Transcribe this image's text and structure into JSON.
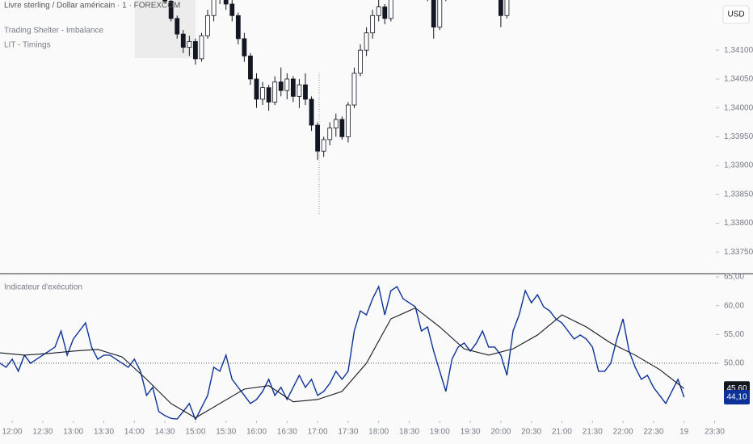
{
  "chart_data": [
    {
      "type": "candlestick",
      "title": "Livre sterling / Dollar américain · 1 · FOREXCOM",
      "indicators": [
        "Trading Shelter - Imbalance",
        "LIT - Timings"
      ],
      "currency": "USD",
      "up_color": "#ffffff",
      "down_color": "#131722",
      "border_color": "#131722",
      "xlim": [
        11.8,
        23.52
      ],
      "ylim": [
        1.33714,
        1.34187
      ],
      "yticks": [
        {
          "value": 1.341,
          "label": "1,34100"
        },
        {
          "value": 1.3405,
          "label": "1,34050"
        },
        {
          "value": 1.34,
          "label": "1,34000"
        },
        {
          "value": 1.3395,
          "label": "1,33950"
        },
        {
          "value": 1.339,
          "label": "1,33900"
        },
        {
          "value": 1.3385,
          "label": "1,33850"
        },
        {
          "value": 1.338,
          "label": "1,33800"
        },
        {
          "value": 1.3375,
          "label": "1,33750"
        }
      ],
      "x": [
        14.5,
        14.6,
        14.7,
        14.8,
        14.9,
        15.0,
        15.1,
        15.2,
        15.3,
        15.4,
        15.5,
        15.6,
        15.7,
        15.8,
        15.9,
        16.0,
        16.1,
        16.2,
        16.3,
        16.4,
        16.5,
        16.6,
        16.7,
        16.8,
        16.9,
        17.0,
        17.1,
        17.2,
        17.3,
        17.4,
        17.5,
        17.6,
        17.7,
        17.8,
        17.9,
        18.0,
        18.1,
        18.2,
        18.3,
        18.4,
        18.5,
        18.6,
        18.7,
        18.8,
        18.9,
        19.0,
        19.1,
        19.2,
        19.3,
        19.4,
        19.5,
        19.6,
        19.7,
        19.8,
        19.9,
        20.0,
        20.1
      ],
      "open": [
        1.342,
        1.34185,
        1.34155,
        1.34128,
        1.34105,
        1.34115,
        1.34085,
        1.34125,
        1.3416,
        1.3419,
        1.3421,
        1.3418,
        1.3416,
        1.3412,
        1.3409,
        1.3405,
        1.34015,
        1.34035,
        1.3401,
        1.34045,
        1.3403,
        1.3405,
        1.3402,
        1.3404,
        1.34015,
        1.3397,
        1.33925,
        1.33945,
        1.33965,
        1.3398,
        1.3395,
        1.34005,
        1.3406,
        1.341,
        1.3413,
        1.3416,
        1.34175,
        1.34155,
        1.342,
        1.3423,
        1.3424,
        1.34235,
        1.34245,
        1.34225,
        1.3419,
        1.3414,
        1.3419,
        1.3423,
        1.3424,
        1.3425,
        1.34245,
        1.3424,
        1.34235,
        1.34225,
        1.3423,
        1.34215,
        1.3416
      ],
      "high": [
        1.34215,
        1.34195,
        1.3416,
        1.34135,
        1.34125,
        1.3412,
        1.3413,
        1.3417,
        1.342,
        1.3423,
        1.3422,
        1.34195,
        1.34165,
        1.3413,
        1.34095,
        1.3406,
        1.34045,
        1.3404,
        1.34055,
        1.3407,
        1.3406,
        1.34055,
        1.3405,
        1.3406,
        1.3402,
        1.33975,
        1.3395,
        1.33975,
        1.3399,
        1.33985,
        1.3401,
        1.3407,
        1.3411,
        1.3414,
        1.3417,
        1.3419,
        1.3418,
        1.3421,
        1.3424,
        1.3425,
        1.3426,
        1.34255,
        1.3426,
        1.3423,
        1.34195,
        1.342,
        1.3424,
        1.3425,
        1.3426,
        1.34265,
        1.34255,
        1.3425,
        1.34245,
        1.3424,
        1.3424,
        1.3422,
        1.342
      ],
      "low": [
        1.3418,
        1.3415,
        1.3412,
        1.34095,
        1.3409,
        1.34075,
        1.3408,
        1.3412,
        1.3415,
        1.3418,
        1.3417,
        1.3415,
        1.3411,
        1.3408,
        1.3404,
        1.34,
        1.34005,
        1.33995,
        1.34005,
        1.3402,
        1.34015,
        1.3401,
        1.34,
        1.34005,
        1.3396,
        1.3391,
        1.33915,
        1.33935,
        1.3395,
        1.33945,
        1.3394,
        1.34,
        1.34055,
        1.3409,
        1.3412,
        1.3415,
        1.34145,
        1.3415,
        1.34195,
        1.34215,
        1.34225,
        1.3422,
        1.34215,
        1.34185,
        1.3412,
        1.34135,
        1.34185,
        1.3422,
        1.3423,
        1.34235,
        1.34225,
        1.3422,
        1.34215,
        1.3421,
        1.34205,
        1.3414,
        1.34155
      ],
      "close": [
        1.34185,
        1.34155,
        1.34128,
        1.34105,
        1.34115,
        1.34085,
        1.34125,
        1.3416,
        1.3419,
        1.3421,
        1.3418,
        1.3416,
        1.3412,
        1.3409,
        1.3405,
        1.34015,
        1.34035,
        1.3401,
        1.34045,
        1.3403,
        1.3405,
        1.3402,
        1.3404,
        1.34015,
        1.3397,
        1.33925,
        1.33945,
        1.33965,
        1.3398,
        1.3395,
        1.34005,
        1.3406,
        1.341,
        1.3413,
        1.3416,
        1.34175,
        1.34155,
        1.342,
        1.3423,
        1.3424,
        1.34235,
        1.34245,
        1.34225,
        1.3419,
        1.3414,
        1.3419,
        1.3423,
        1.3424,
        1.3425,
        1.34245,
        1.3424,
        1.34235,
        1.34225,
        1.3423,
        1.34215,
        1.3416,
        1.34195
      ]
    },
    {
      "type": "line",
      "title": "Indicateur d'exécution",
      "xlim": [
        11.8,
        23.52
      ],
      "ylim": [
        40.17,
        65.42
      ],
      "yticks": [
        {
          "value": 65,
          "label": "65,00"
        },
        {
          "value": 60,
          "label": "60,00"
        },
        {
          "value": 55,
          "label": "55,00"
        },
        {
          "value": 50,
          "label": "50,00"
        }
      ],
      "xticks": [
        {
          "value": 12,
          "label": "12:00"
        },
        {
          "value": 12.5,
          "label": "12:30"
        },
        {
          "value": 13,
          "label": "13:00"
        },
        {
          "value": 13.5,
          "label": "13:30"
        },
        {
          "value": 14,
          "label": "14:00"
        },
        {
          "value": 14.5,
          "label": "14:30"
        },
        {
          "value": 15,
          "label": "15:00"
        },
        {
          "value": 15.5,
          "label": "15:30"
        },
        {
          "value": 16,
          "label": "16:00"
        },
        {
          "value": 16.5,
          "label": "16:30"
        },
        {
          "value": 17,
          "label": "17:00"
        },
        {
          "value": 17.5,
          "label": "17:30"
        },
        {
          "value": 18,
          "label": "18:00"
        },
        {
          "value": 18.5,
          "label": "18:30"
        },
        {
          "value": 19,
          "label": "19:00"
        },
        {
          "value": 19.5,
          "label": "19:30"
        },
        {
          "value": 20,
          "label": "20:00"
        },
        {
          "value": 20.5,
          "label": "20:30"
        },
        {
          "value": 21,
          "label": "21:00"
        },
        {
          "value": 21.5,
          "label": "21:30"
        },
        {
          "value": 22,
          "label": "22:00"
        },
        {
          "value": 22.5,
          "label": "22:30"
        },
        {
          "value": 23,
          "label": "19"
        },
        {
          "value": 23.5,
          "label": "23:30"
        }
      ],
      "hline": 50,
      "series": [
        {
          "color": "#0c3299",
          "last_label": {
            "value": 44.1,
            "label": "44,10"
          },
          "x": [
            11.8,
            11.9,
            12.0,
            12.1,
            12.2,
            12.3,
            12.4,
            12.5,
            12.6,
            12.7,
            12.8,
            12.9,
            13.0,
            13.1,
            13.2,
            13.3,
            13.4,
            13.5,
            13.6,
            13.7,
            13.8,
            13.9,
            14.0,
            14.1,
            14.2,
            14.3,
            14.4,
            14.5,
            14.6,
            14.7,
            14.8,
            14.9,
            15.0,
            15.1,
            15.2,
            15.3,
            15.4,
            15.5,
            15.6,
            15.7,
            15.8,
            15.9,
            16.0,
            16.1,
            16.2,
            16.3,
            16.4,
            16.5,
            16.6,
            16.7,
            16.8,
            16.9,
            17.0,
            17.1,
            17.2,
            17.3,
            17.4,
            17.5,
            17.6,
            17.7,
            17.8,
            17.9,
            18.0,
            18.1,
            18.2,
            18.3,
            18.4,
            18.5,
            18.6,
            18.7,
            18.8,
            18.9,
            19.0,
            19.1,
            19.2,
            19.3,
            19.4,
            19.5,
            19.6,
            19.7,
            19.8,
            19.9,
            20.0,
            20.1,
            20.2,
            20.3,
            20.4,
            20.5,
            20.6,
            20.7,
            20.8,
            20.9,
            21.0,
            21.1,
            21.2,
            21.3,
            21.4,
            21.5,
            21.6,
            21.7,
            21.8,
            21.9,
            22.0,
            22.1,
            22.2,
            22.3,
            22.4,
            22.5,
            22.6,
            22.7,
            22.8,
            22.9,
            23.0
          ],
          "values": [
            50.0,
            49.3,
            50.7,
            48.6,
            51.4,
            50.0,
            50.7,
            51.4,
            52.1,
            52.8,
            55.6,
            51.4,
            54.2,
            55.6,
            57.0,
            52.8,
            50.7,
            51.4,
            51.4,
            50.7,
            50.0,
            49.3,
            50.7,
            48.6,
            44.4,
            45.8,
            41.6,
            40.9,
            40.4,
            40.3,
            41.6,
            43.0,
            40.2,
            42.3,
            44.4,
            49.3,
            48.6,
            51.4,
            47.2,
            45.8,
            44.4,
            43.0,
            43.7,
            45.1,
            47.2,
            44.4,
            45.8,
            43.7,
            45.8,
            47.9,
            45.8,
            47.2,
            44.4,
            45.1,
            46.5,
            48.6,
            47.2,
            48.6,
            55.6,
            59.1,
            58.4,
            61.2,
            63.3,
            58.4,
            62.6,
            63.3,
            61.2,
            60.5,
            59.8,
            55.6,
            56.3,
            52.1,
            48.6,
            45.1,
            50.7,
            52.8,
            53.5,
            52.1,
            53.5,
            55.6,
            52.8,
            52.8,
            51.4,
            47.9,
            55.6,
            58.4,
            62.6,
            60.5,
            61.9,
            59.8,
            59.1,
            57.7,
            57.0,
            55.6,
            54.2,
            54.9,
            54.2,
            52.8,
            48.6,
            48.6,
            50.0,
            54.2,
            57.7,
            52.1,
            49.3,
            47.2,
            47.9,
            45.8,
            44.4,
            43.0,
            45.1,
            47.2,
            44.1
          ]
        },
        {
          "color": "#131722",
          "last_label": {
            "value": 45.6,
            "label": "45,60"
          },
          "x": [
            11.8,
            12.2,
            12.6,
            13.0,
            13.4,
            13.8,
            14.2,
            14.6,
            15.0,
            15.4,
            15.8,
            16.2,
            16.6,
            17.0,
            17.4,
            17.8,
            18.2,
            18.6,
            19.0,
            19.4,
            19.8,
            20.2,
            20.6,
            21.0,
            21.4,
            21.8,
            22.2,
            22.6,
            23.0
          ],
          "values": [
            51.8,
            51.4,
            51.7,
            52.1,
            52.4,
            51.1,
            47.2,
            43.0,
            40.5,
            43.0,
            45.5,
            46.1,
            43.3,
            43.7,
            45.1,
            50.0,
            57.7,
            59.6,
            56.3,
            52.5,
            51.4,
            52.5,
            54.9,
            58.4,
            56.3,
            53.5,
            51.4,
            48.9,
            45.6
          ]
        }
      ]
    }
  ]
}
